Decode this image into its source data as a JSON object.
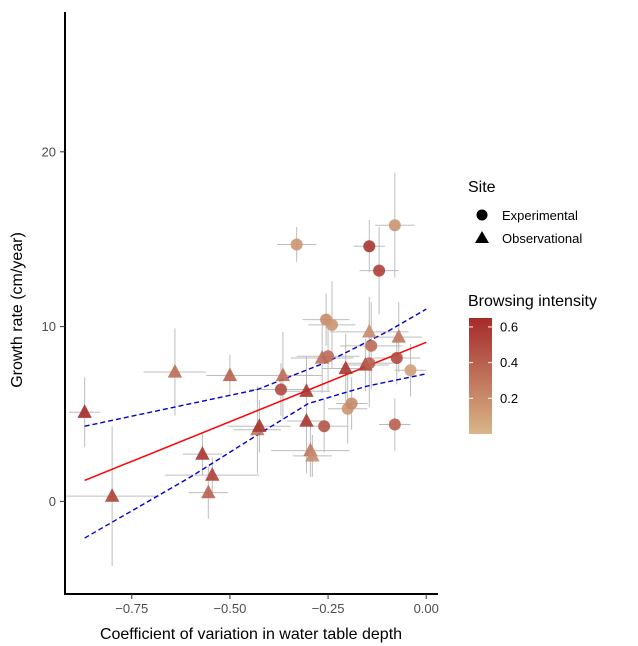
{
  "chart_data": {
    "type": "scatter",
    "xlabel": "Coefficient of variation in water table depth",
    "ylabel": "Growth rate (cm/year)",
    "xlim": [
      -0.92,
      0.03
    ],
    "ylim": [
      -5.3,
      28.0
    ],
    "x_ticks": [
      -0.75,
      -0.5,
      -0.25,
      0.0
    ],
    "x_tick_labels": [
      "−0.75",
      "−0.50",
      "−0.25",
      "0.00"
    ],
    "y_ticks": [
      0,
      10,
      20
    ],
    "y_tick_labels": [
      "0",
      "10",
      "20"
    ],
    "grid": false,
    "colors": {
      "low": "#d8b688",
      "high": "#a52a2a",
      "fit_line": "#ff0000",
      "ci_line": "#0000cc",
      "error_bar": "#bdbdbd"
    },
    "legend_site": {
      "title": "Site",
      "placement": "right",
      "entries": [
        {
          "label": "Experimental",
          "shape": "circle"
        },
        {
          "label": "Observational",
          "shape": "triangle"
        }
      ]
    },
    "legend_browsing": {
      "title": "Browsing intensity",
      "placement": "right",
      "range": [
        0.0,
        0.65
      ],
      "ticks": [
        0.2,
        0.4,
        0.6
      ],
      "tick_labels": [
        "0.2",
        "0.4",
        "0.6"
      ]
    },
    "fit": {
      "x": [
        -0.87,
        0.0
      ],
      "y": [
        1.2,
        9.1
      ]
    },
    "ci_upper": {
      "x": [
        -0.87,
        -0.43,
        -0.25,
        -0.1,
        0.0
      ],
      "y": [
        4.3,
        6.4,
        8.0,
        9.7,
        11.0
      ]
    },
    "ci_lower": {
      "x": [
        -0.87,
        -0.6,
        -0.43,
        -0.3,
        -0.15,
        0.0
      ],
      "y": [
        -2.1,
        1.4,
        3.8,
        5.6,
        6.6,
        7.3
      ]
    },
    "points": [
      {
        "x": -0.87,
        "y": 5.1,
        "site": "Observational",
        "browsing": 0.65,
        "xerr": 0.04,
        "yerr": 2.0
      },
      {
        "x": -0.8,
        "y": 0.3,
        "site": "Observational",
        "browsing": 0.55,
        "xerr": 0.12,
        "yerr": 4.0
      },
      {
        "x": -0.64,
        "y": 7.4,
        "site": "Observational",
        "browsing": 0.35,
        "xerr": 0.08,
        "yerr": 2.5
      },
      {
        "x": -0.57,
        "y": 2.7,
        "site": "Observational",
        "browsing": 0.6,
        "xerr": 0.05,
        "yerr": 1.2
      },
      {
        "x": -0.555,
        "y": 0.5,
        "site": "Observational",
        "browsing": 0.4,
        "xerr": 0.05,
        "yerr": 1.5
      },
      {
        "x": -0.545,
        "y": 1.5,
        "site": "Observational",
        "browsing": 0.55,
        "xerr": 0.12,
        "yerr": 1.0
      },
      {
        "x": -0.5,
        "y": 7.2,
        "site": "Observational",
        "browsing": 0.4,
        "xerr": 0.06,
        "yerr": 1.2
      },
      {
        "x": -0.43,
        "y": 4.1,
        "site": "Observational",
        "browsing": 0.3,
        "xerr": 0.06,
        "yerr": 2.5
      },
      {
        "x": -0.425,
        "y": 4.3,
        "site": "Observational",
        "browsing": 0.6,
        "xerr": 0.08,
        "yerr": 1.5
      },
      {
        "x": -0.37,
        "y": 6.4,
        "site": "Experimental",
        "browsing": 0.5,
        "xerr": 0.08,
        "yerr": 1.5
      },
      {
        "x": -0.365,
        "y": 7.2,
        "site": "Observational",
        "browsing": 0.35,
        "xerr": 0.1,
        "yerr": 2.5
      },
      {
        "x": -0.33,
        "y": 14.7,
        "site": "Experimental",
        "browsing": 0.15,
        "xerr": 0.05,
        "yerr": 1.0
      },
      {
        "x": -0.305,
        "y": 6.3,
        "site": "Observational",
        "browsing": 0.6,
        "xerr": 0.06,
        "yerr": 2.0
      },
      {
        "x": -0.305,
        "y": 4.6,
        "site": "Observational",
        "browsing": 0.6,
        "xerr": 0.05,
        "yerr": 3.0
      },
      {
        "x": -0.295,
        "y": 2.9,
        "site": "Observational",
        "browsing": 0.3,
        "xerr": 0.1,
        "yerr": 1.5
      },
      {
        "x": -0.29,
        "y": 2.6,
        "site": "Observational",
        "browsing": 0.2,
        "xerr": 0.05,
        "yerr": 1.2
      },
      {
        "x": -0.265,
        "y": 8.2,
        "site": "Observational",
        "browsing": 0.35,
        "xerr": 0.08,
        "yerr": 2.0
      },
      {
        "x": -0.26,
        "y": 4.3,
        "site": "Experimental",
        "browsing": 0.45,
        "xerr": 0.06,
        "yerr": 1.5
      },
      {
        "x": -0.255,
        "y": 10.4,
        "site": "Experimental",
        "browsing": 0.2,
        "xerr": 0.06,
        "yerr": 1.5
      },
      {
        "x": -0.25,
        "y": 8.3,
        "site": "Experimental",
        "browsing": 0.35,
        "xerr": 0.08,
        "yerr": 2.0
      },
      {
        "x": -0.24,
        "y": 10.1,
        "site": "Experimental",
        "browsing": 0.15,
        "xerr": 0.06,
        "yerr": 2.5
      },
      {
        "x": -0.205,
        "y": 7.6,
        "site": "Observational",
        "browsing": 0.6,
        "xerr": 0.06,
        "yerr": 2.0
      },
      {
        "x": -0.2,
        "y": 5.3,
        "site": "Experimental",
        "browsing": 0.15,
        "xerr": 0.05,
        "yerr": 2.0
      },
      {
        "x": -0.19,
        "y": 5.6,
        "site": "Experimental",
        "browsing": 0.2,
        "xerr": 0.04,
        "yerr": 1.5
      },
      {
        "x": -0.155,
        "y": 7.8,
        "site": "Observational",
        "browsing": 0.55,
        "xerr": 0.06,
        "yerr": 1.5
      },
      {
        "x": -0.145,
        "y": 14.6,
        "site": "Experimental",
        "browsing": 0.6,
        "xerr": 0.04,
        "yerr": 1.5
      },
      {
        "x": -0.145,
        "y": 9.7,
        "site": "Observational",
        "browsing": 0.2,
        "xerr": 0.1,
        "yerr": 2.0
      },
      {
        "x": -0.14,
        "y": 8.9,
        "site": "Experimental",
        "browsing": 0.35,
        "xerr": 0.08,
        "yerr": 2.5
      },
      {
        "x": -0.145,
        "y": 7.9,
        "site": "Experimental",
        "browsing": 0.4,
        "xerr": 0.06,
        "yerr": 2.5
      },
      {
        "x": -0.12,
        "y": 13.2,
        "site": "Experimental",
        "browsing": 0.55,
        "xerr": 0.05,
        "yerr": 2.5
      },
      {
        "x": -0.08,
        "y": 15.8,
        "site": "Experimental",
        "browsing": 0.15,
        "xerr": 0.05,
        "yerr": 3.0
      },
      {
        "x": -0.08,
        "y": 4.4,
        "site": "Experimental",
        "browsing": 0.4,
        "xerr": 0.04,
        "yerr": 1.5
      },
      {
        "x": -0.075,
        "y": 8.2,
        "site": "Experimental",
        "browsing": 0.5,
        "xerr": 0.06,
        "yerr": 1.5
      },
      {
        "x": -0.07,
        "y": 9.4,
        "site": "Observational",
        "browsing": 0.3,
        "xerr": 0.06,
        "yerr": 2.0
      },
      {
        "x": -0.04,
        "y": 7.5,
        "site": "Experimental",
        "browsing": 0.1,
        "xerr": 0.04,
        "yerr": 1.5
      }
    ]
  }
}
